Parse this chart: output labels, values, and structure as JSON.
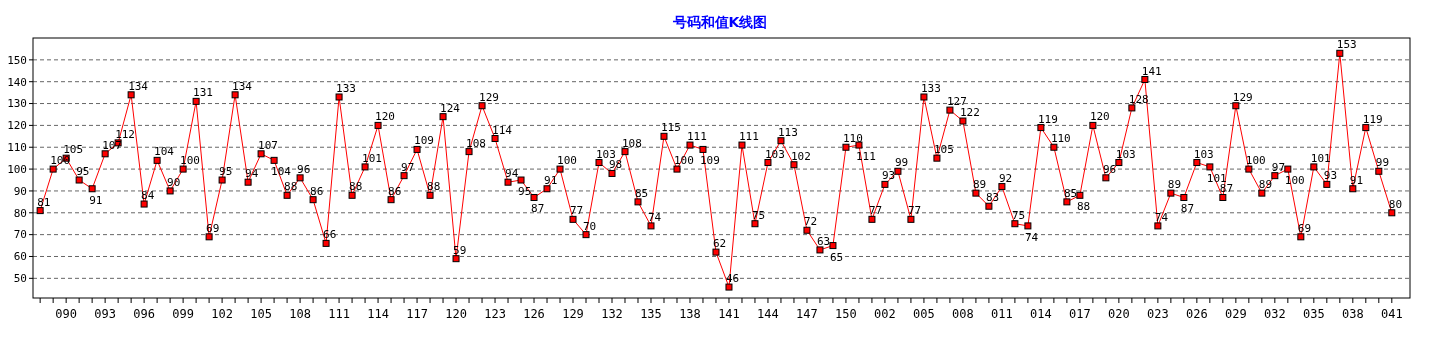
{
  "chart_data": {
    "type": "line",
    "title": "号码和值K线图",
    "categories": [
      null,
      null,
      "090",
      null,
      null,
      "093",
      null,
      null,
      "096",
      null,
      null,
      "099",
      null,
      null,
      "102",
      null,
      null,
      "105",
      null,
      null,
      "108",
      null,
      null,
      "111",
      null,
      null,
      "114",
      null,
      null,
      "117",
      null,
      null,
      "120",
      null,
      null,
      "123",
      null,
      null,
      "126",
      null,
      null,
      "129",
      null,
      null,
      "132",
      null,
      null,
      "135",
      null,
      null,
      "138",
      null,
      null,
      "141",
      null,
      null,
      "144",
      null,
      null,
      "147",
      null,
      null,
      "150",
      null,
      null,
      "002",
      null,
      null,
      "005",
      null,
      null,
      "008",
      null,
      null,
      "011",
      null,
      null,
      "014",
      null,
      null,
      "017",
      null,
      null,
      "020",
      null,
      null,
      "023",
      null,
      null,
      "026",
      null,
      null,
      "029",
      null,
      null,
      "032",
      null,
      null,
      "035",
      null,
      null,
      "038",
      null,
      null,
      "041"
    ],
    "series": [
      {
        "color": "#ff0000",
        "values": [
          81,
          100,
          105,
          95,
          91,
          107,
          112,
          134,
          84,
          104,
          90,
          100,
          131,
          69,
          95,
          134,
          94,
          107,
          104,
          88,
          96,
          86,
          66,
          133,
          88,
          101,
          120,
          86,
          97,
          109,
          88,
          124,
          59,
          108,
          129,
          114,
          94,
          95,
          87,
          91,
          100,
          77,
          70,
          103,
          98,
          108,
          85,
          74,
          115,
          100,
          111,
          109,
          62,
          46,
          111,
          75,
          103,
          113,
          102,
          72,
          63,
          65,
          110,
          111,
          77,
          93,
          99,
          77,
          133,
          105,
          127,
          122,
          89,
          83,
          92,
          75,
          74,
          119,
          110,
          85,
          88,
          120,
          96,
          103,
          128,
          141,
          74,
          89,
          87,
          103,
          101,
          87,
          129,
          100,
          89,
          97,
          100,
          69,
          101,
          93,
          153,
          91,
          119,
          99,
          80
        ]
      }
    ],
    "ylim": [
      41,
      160
    ],
    "yticks": [
      50,
      60,
      70,
      80,
      90,
      100,
      110,
      120,
      130,
      140,
      150
    ],
    "grid": "y",
    "marker": "square",
    "line_style": "solid",
    "data_labels": true
  }
}
